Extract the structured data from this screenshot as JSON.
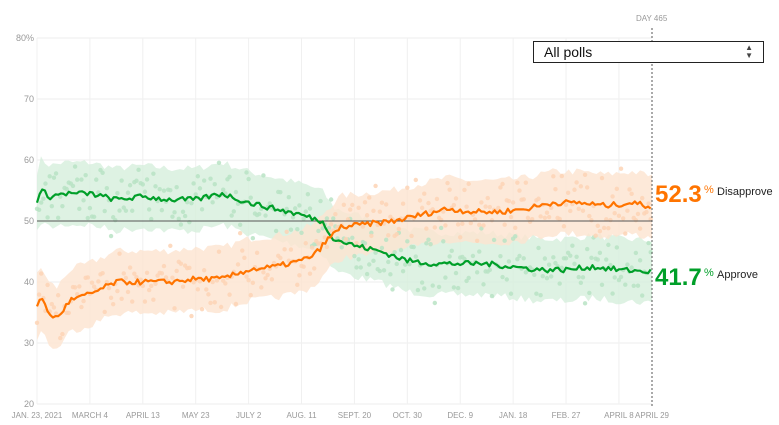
{
  "chart_data": {
    "type": "line",
    "title": "",
    "ylim": [
      20,
      80
    ],
    "yticks": [
      "20",
      "30",
      "40",
      "50",
      "60",
      "70",
      "80%"
    ],
    "ytick_values": [
      20,
      30,
      40,
      50,
      60,
      70,
      80
    ],
    "xticks": [
      "JAN. 23, 2021",
      "MARCH 4",
      "APRIL 13",
      "MAY 23",
      "JULY 2",
      "AUG. 11",
      "SEPT. 20",
      "OCT. 30",
      "DEC. 9",
      "JAN. 18",
      "FEB. 27",
      "APRIL 8",
      "APRIL 29"
    ],
    "xtick_days": [
      0,
      40,
      80,
      120,
      160,
      200,
      240,
      280,
      320,
      360,
      400,
      440,
      465
    ],
    "xlim_days": [
      0,
      465
    ],
    "current_day_label": "DAY 465",
    "grid": true,
    "series": [
      {
        "name": "Approve",
        "color": "#009f29",
        "final": "41.7",
        "points": [
          [
            0,
            53
          ],
          [
            3,
            55
          ],
          [
            10,
            54
          ],
          [
            20,
            54.5
          ],
          [
            40,
            54.5
          ],
          [
            60,
            53.5
          ],
          [
            80,
            54
          ],
          [
            100,
            53.5
          ],
          [
            120,
            53.5
          ],
          [
            140,
            54.5
          ],
          [
            160,
            53
          ],
          [
            180,
            52
          ],
          [
            200,
            51
          ],
          [
            215,
            50
          ],
          [
            225,
            47
          ],
          [
            240,
            46
          ],
          [
            260,
            45
          ],
          [
            280,
            43.5
          ],
          [
            300,
            43
          ],
          [
            320,
            43
          ],
          [
            340,
            43
          ],
          [
            360,
            42.5
          ],
          [
            380,
            42
          ],
          [
            400,
            42
          ],
          [
            420,
            42.5
          ],
          [
            440,
            42
          ],
          [
            465,
            41.7
          ]
        ]
      },
      {
        "name": "Disapprove",
        "color": "#ff7400",
        "final": "52.3",
        "points": [
          [
            0,
            36
          ],
          [
            4,
            37.5
          ],
          [
            8,
            35
          ],
          [
            15,
            34
          ],
          [
            25,
            37
          ],
          [
            40,
            38
          ],
          [
            60,
            40
          ],
          [
            80,
            40
          ],
          [
            100,
            40
          ],
          [
            120,
            40.5
          ],
          [
            140,
            40.5
          ],
          [
            160,
            42
          ],
          [
            180,
            42.5
          ],
          [
            200,
            43.5
          ],
          [
            210,
            44.5
          ],
          [
            220,
            47
          ],
          [
            230,
            49
          ],
          [
            250,
            49.5
          ],
          [
            270,
            50
          ],
          [
            290,
            51
          ],
          [
            310,
            52
          ],
          [
            330,
            51.5
          ],
          [
            350,
            51.5
          ],
          [
            370,
            52
          ],
          [
            390,
            53
          ],
          [
            410,
            53
          ],
          [
            430,
            52.5
          ],
          [
            450,
            53
          ],
          [
            465,
            52.3
          ]
        ]
      }
    ]
  },
  "filter": {
    "selected": "All polls"
  },
  "readouts": {
    "disapprove": {
      "value": "52.3",
      "pct": "%",
      "label": "Disapprove"
    },
    "approve": {
      "value": "41.7",
      "pct": "%",
      "label": "Approve"
    }
  },
  "colors": {
    "approve": "#009f29",
    "disapprove": "#ff7400"
  }
}
